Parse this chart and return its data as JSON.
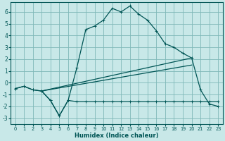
{
  "title": "",
  "xlabel": "Humidex (Indice chaleur)",
  "ylabel": "",
  "bg_color": "#c8e8e8",
  "grid_color": "#7fb8b8",
  "line_color": "#005555",
  "xlim": [
    -0.5,
    23.5
  ],
  "ylim": [
    -3.5,
    6.8
  ],
  "xticks": [
    0,
    1,
    2,
    3,
    4,
    5,
    6,
    7,
    8,
    9,
    10,
    11,
    12,
    13,
    14,
    15,
    16,
    17,
    18,
    19,
    20,
    21,
    22,
    23
  ],
  "yticks": [
    -3,
    -2,
    -1,
    0,
    1,
    2,
    3,
    4,
    5,
    6
  ],
  "curve_main_x": [
    0,
    1,
    2,
    3,
    4,
    5,
    6,
    7,
    8,
    9,
    10,
    11,
    12,
    13,
    14,
    15,
    16,
    17,
    18,
    19,
    20,
    21,
    22,
    23
  ],
  "curve_main_y": [
    -0.5,
    -0.3,
    -0.6,
    -0.7,
    -1.5,
    -2.8,
    -1.5,
    1.3,
    4.5,
    4.8,
    5.3,
    6.3,
    6.0,
    6.5,
    5.8,
    5.3,
    4.4,
    3.3,
    3.0,
    2.5,
    2.1,
    -0.6,
    -1.8,
    -2.0
  ],
  "curve_flat_x": [
    0,
    1,
    2,
    3,
    4,
    5,
    6,
    7,
    8,
    9,
    10,
    11,
    12,
    13,
    14,
    15,
    16,
    17,
    18,
    19,
    20,
    21,
    22,
    23
  ],
  "curve_flat_y": [
    -0.5,
    -0.3,
    -0.6,
    -0.7,
    -1.5,
    -2.8,
    -1.5,
    -1.6,
    -1.6,
    -1.6,
    -1.6,
    -1.6,
    -1.6,
    -1.6,
    -1.6,
    -1.6,
    -1.6,
    -1.6,
    -1.6,
    -1.6,
    -1.6,
    -1.6,
    -1.6,
    -1.6
  ],
  "line1_x": [
    3,
    20
  ],
  "line1_y": [
    -0.7,
    2.1
  ],
  "line2_x": [
    3,
    20
  ],
  "line2_y": [
    -0.7,
    1.5
  ]
}
